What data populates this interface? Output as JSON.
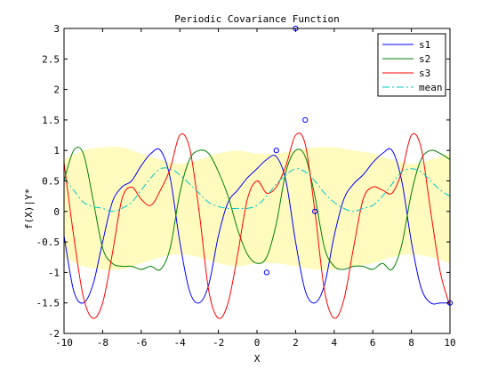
{
  "chart_data": {
    "type": "line",
    "title": "Periodic Covariance Function",
    "xlabel": "X",
    "ylabel": "f(X)|Y*",
    "xlim": [
      -10,
      10
    ],
    "ylim": [
      -2,
      3
    ],
    "xticks": [
      -10,
      -8,
      -6,
      -4,
      -2,
      0,
      2,
      4,
      6,
      8,
      10
    ],
    "yticks": [
      -2,
      -1.5,
      -1,
      -0.5,
      0,
      0.5,
      1,
      1.5,
      2,
      2.5,
      3
    ],
    "x_tick_labels": [
      "-10",
      "-8",
      "-6",
      "-4",
      "-2",
      "0",
      "2",
      "4",
      "6",
      "8",
      "10"
    ],
    "y_tick_labels": [
      "-2",
      "-1.5",
      "-1",
      "-0.5",
      "0",
      "0.5",
      "1",
      "1.5",
      "2",
      "2.5",
      "3"
    ],
    "legend_position": "top-right",
    "grid": false,
    "confidence_band": {
      "color": "#fffbbf",
      "x": [
        -10,
        -9,
        -8,
        -7,
        -6,
        -5,
        -4,
        -3,
        -2,
        -1,
        0,
        1,
        2,
        3,
        4,
        5,
        6,
        7,
        8,
        9,
        10
      ],
      "upper": [
        0.85,
        1.0,
        1.05,
        1.05,
        0.95,
        0.85,
        0.78,
        0.85,
        0.95,
        1.0,
        0.95,
        0.95,
        1.0,
        1.05,
        1.05,
        1.0,
        0.95,
        0.85,
        0.78,
        0.85,
        0.95
      ],
      "lower": [
        -0.75,
        -0.9,
        -0.95,
        -0.95,
        -0.85,
        -0.75,
        -0.7,
        -0.75,
        -0.85,
        -0.9,
        -0.85,
        -0.85,
        -0.9,
        -0.95,
        -0.95,
        -0.9,
        -0.85,
        -0.75,
        -0.7,
        -0.75,
        -0.85
      ]
    },
    "series": [
      {
        "name": "s1",
        "color": "#0000ff",
        "dash": "",
        "x": [
          -10,
          -9.5,
          -9,
          -8.5,
          -8,
          -7.5,
          -7,
          -6.5,
          -6,
          -5.5,
          -5,
          -4.5,
          -4,
          -3.5,
          -3,
          -2.5,
          -2,
          -1.5,
          -1,
          -0.5,
          0,
          0.5,
          1,
          1.5,
          2,
          2.5,
          3,
          3.5,
          4,
          4.5,
          5,
          5.5,
          6,
          6.5,
          7,
          7.5,
          8,
          8.5,
          9,
          9.5,
          10
        ],
        "values": [
          -0.4,
          -1.3,
          -1.5,
          -1.2,
          -0.5,
          0.15,
          0.4,
          0.5,
          0.75,
          0.95,
          1.0,
          0.55,
          -0.5,
          -1.3,
          -1.5,
          -1.2,
          -0.4,
          0.15,
          0.35,
          0.55,
          0.7,
          0.85,
          0.9,
          0.5,
          -0.5,
          -1.3,
          -1.5,
          -1.2,
          -0.4,
          0.2,
          0.45,
          0.6,
          0.8,
          0.95,
          1.0,
          0.5,
          -0.5,
          -1.25,
          -1.5,
          -1.5,
          -1.5
        ]
      },
      {
        "name": "s2",
        "color": "#008000",
        "dash": "",
        "x": [
          -10,
          -9.5,
          -9,
          -8.5,
          -8,
          -7.5,
          -7,
          -6.5,
          -6,
          -5.5,
          -5,
          -4.5,
          -4,
          -3.5,
          -3,
          -2.5,
          -2,
          -1.5,
          -1,
          -0.5,
          0,
          0.5,
          1,
          1.5,
          2,
          2.5,
          3,
          3.5,
          4,
          4.5,
          5,
          5.5,
          6,
          6.5,
          7,
          7.5,
          8,
          8.5,
          9,
          9.5,
          10
        ],
        "values": [
          0.5,
          1.0,
          0.95,
          0.2,
          -0.6,
          -0.85,
          -0.9,
          -0.9,
          -0.95,
          -0.9,
          -0.95,
          -0.6,
          0.3,
          0.85,
          1.0,
          0.95,
          0.65,
          0.25,
          -0.3,
          -0.7,
          -0.85,
          -0.75,
          -0.2,
          0.65,
          1.0,
          0.9,
          0.25,
          -0.6,
          -0.9,
          -0.95,
          -0.9,
          -0.9,
          -0.95,
          -0.85,
          -0.95,
          -0.55,
          0.3,
          0.85,
          1.0,
          0.95,
          0.85
        ]
      },
      {
        "name": "s3",
        "color": "#ff0000",
        "dash": "",
        "x": [
          -10,
          -9.5,
          -9,
          -8.5,
          -8,
          -7.5,
          -7,
          -6.5,
          -6,
          -5.5,
          -5,
          -4.5,
          -4,
          -3.5,
          -3,
          -2.5,
          -2,
          -1.5,
          -1,
          -0.5,
          0,
          0.5,
          1,
          1.5,
          2,
          2.5,
          3,
          3.5,
          4,
          4.5,
          5,
          5.5,
          6,
          6.5,
          7,
          7.5,
          8,
          8.5,
          9,
          9.5,
          10
        ],
        "values": [
          0.8,
          -0.4,
          -1.4,
          -1.75,
          -1.5,
          -0.7,
          0.2,
          0.4,
          0.2,
          0.1,
          0.35,
          0.7,
          1.25,
          1.05,
          0.0,
          -1.3,
          -1.75,
          -1.5,
          -0.7,
          0.2,
          0.5,
          0.3,
          0.4,
          0.75,
          1.25,
          1.1,
          0.0,
          -1.3,
          -1.75,
          -1.45,
          -0.6,
          0.2,
          0.4,
          0.35,
          0.3,
          0.65,
          1.25,
          1.05,
          0.0,
          -1.0,
          -1.55
        ]
      },
      {
        "name": "mean",
        "color": "#00c8c8",
        "dash": "8,3,2,3",
        "x": [
          -10,
          -9.5,
          -9,
          -8.5,
          -8,
          -7.5,
          -7,
          -6.5,
          -6,
          -5.5,
          -5,
          -4.5,
          -4,
          -3.5,
          -3,
          -2.5,
          -2,
          -1.5,
          -1,
          -0.5,
          0,
          0.5,
          1,
          1.5,
          2,
          2.5,
          3,
          3.5,
          4,
          4.5,
          5,
          5.5,
          6,
          6.5,
          7,
          7.5,
          8,
          8.5,
          9,
          9.5,
          10
        ],
        "values": [
          0.55,
          0.35,
          0.15,
          0.08,
          0.05,
          0.0,
          0.05,
          0.15,
          0.35,
          0.55,
          0.7,
          0.7,
          0.6,
          0.45,
          0.3,
          0.15,
          0.08,
          0.05,
          0.05,
          0.05,
          0.1,
          0.25,
          0.45,
          0.6,
          0.7,
          0.65,
          0.5,
          0.3,
          0.15,
          0.05,
          0.0,
          0.05,
          0.1,
          0.25,
          0.45,
          0.65,
          0.7,
          0.65,
          0.5,
          0.35,
          0.25
        ]
      }
    ],
    "observations": {
      "color": "#0000ff",
      "x": [
        0.5,
        1.0,
        2.0,
        2.5,
        3.0,
        10.0
      ],
      "y": [
        -1.0,
        1.0,
        3.0,
        1.5,
        0.0,
        -1.5
      ]
    }
  }
}
